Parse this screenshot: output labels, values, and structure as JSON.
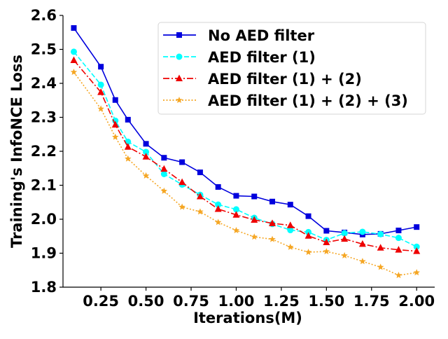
{
  "chart_data": {
    "type": "line",
    "title": "",
    "xlabel": "Iterations(M)",
    "ylabel": "Training's InfoNCE Loss",
    "xlim": [
      0.04,
      2.1
    ],
    "ylim": [
      1.8,
      2.6
    ],
    "xticks": [
      0.25,
      0.5,
      0.75,
      1.0,
      1.25,
      1.5,
      1.75,
      2.0
    ],
    "xtick_labels": [
      "0.25",
      "0.50",
      "0.75",
      "1.00",
      "1.25",
      "1.50",
      "1.75",
      "2.00"
    ],
    "yticks": [
      1.8,
      1.9,
      2.0,
      2.1,
      2.2,
      2.3,
      2.4,
      2.5,
      2.6
    ],
    "ytick_labels": [
      "1.8",
      "1.9",
      "2.0",
      "2.1",
      "2.2",
      "2.3",
      "2.4",
      "2.5",
      "2.6"
    ],
    "grid": false,
    "legend_position": "top-right",
    "x": [
      0.1,
      0.25,
      0.33,
      0.4,
      0.5,
      0.6,
      0.7,
      0.8,
      0.9,
      1.0,
      1.1,
      1.2,
      1.3,
      1.4,
      1.5,
      1.6,
      1.7,
      1.8,
      1.9,
      2.0
    ],
    "series": [
      {
        "name": "No AED filter",
        "color": "#0000dd",
        "dash": "solid",
        "marker": "square",
        "values": [
          2.563,
          2.449,
          2.351,
          2.293,
          2.222,
          2.181,
          2.168,
          2.138,
          2.095,
          2.069,
          2.067,
          2.052,
          2.043,
          2.009,
          1.966,
          1.961,
          1.955,
          1.957,
          1.967,
          1.977
        ]
      },
      {
        "name": "AED filter (1)",
        "color": "#00ffff",
        "dash": "dashed",
        "marker": "circle",
        "values": [
          2.493,
          2.396,
          2.29,
          2.228,
          2.198,
          2.133,
          2.102,
          2.072,
          2.043,
          2.029,
          2.004,
          1.986,
          1.968,
          1.962,
          1.939,
          1.959,
          1.963,
          1.956,
          1.945,
          1.919
        ]
      },
      {
        "name": "AED filter (1) + (2)",
        "color": "#ee0000",
        "dash": "dashdot",
        "marker": "triangle",
        "values": [
          2.468,
          2.374,
          2.278,
          2.213,
          2.184,
          2.148,
          2.109,
          2.067,
          2.03,
          2.013,
          1.998,
          1.988,
          1.982,
          1.951,
          1.932,
          1.942,
          1.927,
          1.916,
          1.91,
          1.906
        ]
      },
      {
        "name": "AED filter (1) + (2) + (3)",
        "color": "#f5a623",
        "dash": "dotted",
        "marker": "star",
        "values": [
          2.433,
          2.325,
          2.242,
          2.178,
          2.128,
          2.083,
          2.036,
          2.022,
          1.991,
          1.967,
          1.948,
          1.941,
          1.918,
          1.903,
          1.905,
          1.893,
          1.876,
          1.859,
          1.835,
          1.843
        ]
      }
    ]
  }
}
